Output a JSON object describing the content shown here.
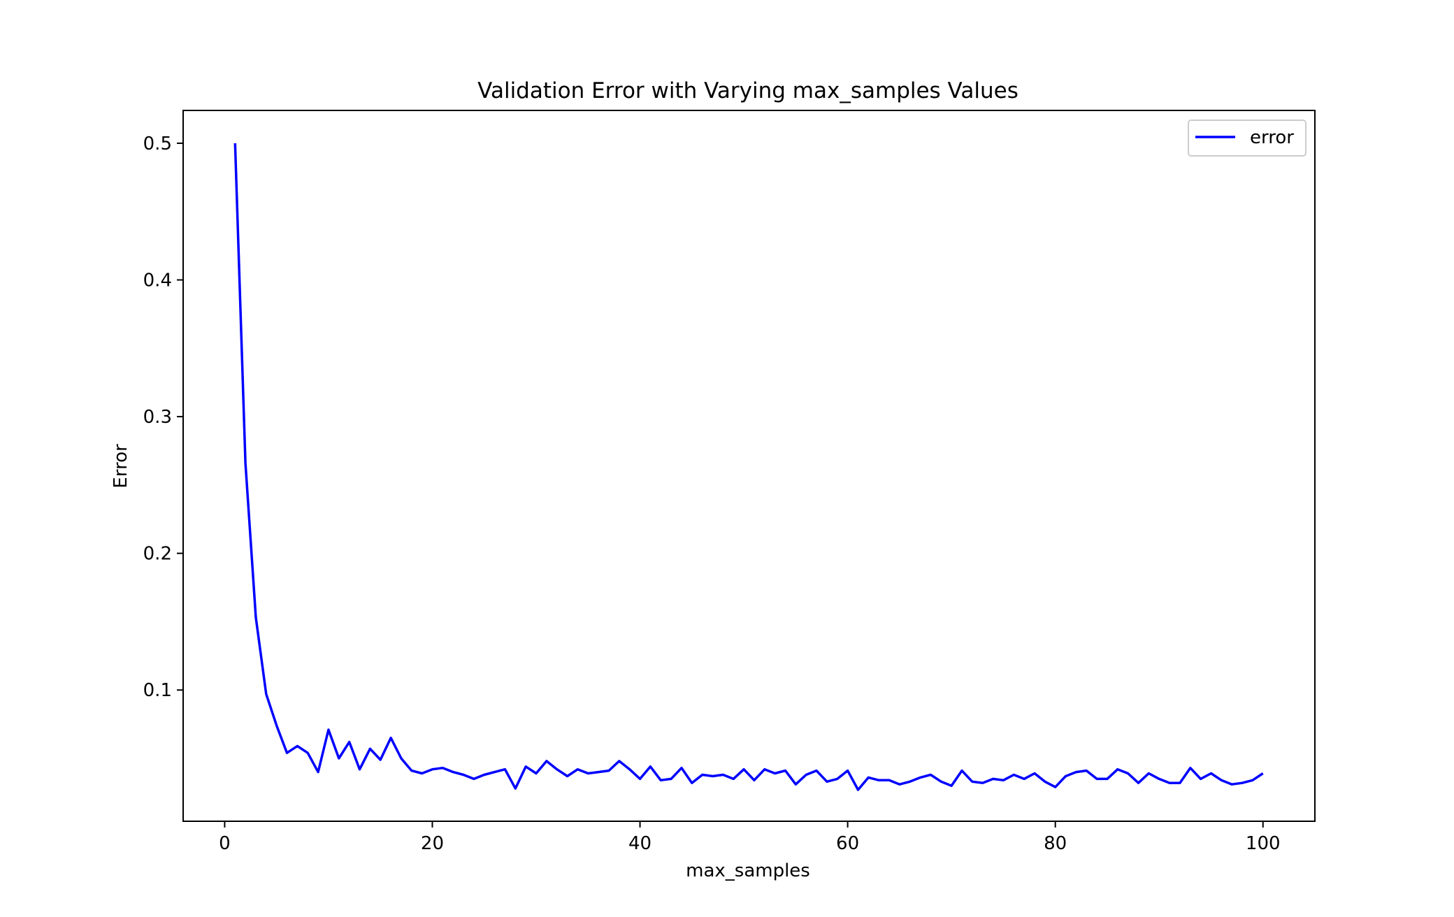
{
  "chart_data": {
    "type": "line",
    "title": "Validation Error with Varying max_samples Values",
    "xlabel": "max_samples",
    "ylabel": "Error",
    "xlim": [
      -4,
      105
    ],
    "ylim": [
      0.004,
      0.524
    ],
    "xticks": [
      0,
      20,
      40,
      60,
      80,
      100
    ],
    "yticks": [
      0.1,
      0.2,
      0.3,
      0.4,
      0.5
    ],
    "xtick_labels": [
      "0",
      "20",
      "40",
      "60",
      "80",
      "100"
    ],
    "ytick_labels": [
      "0.1",
      "0.2",
      "0.3",
      "0.4",
      "0.5"
    ],
    "grid": false,
    "legend": {
      "position": "top-right",
      "entries": [
        "error"
      ]
    },
    "series": [
      {
        "name": "error",
        "color": "#0000ff",
        "x": [
          1,
          2,
          3,
          4,
          5,
          6,
          7,
          8,
          9,
          10,
          11,
          12,
          13,
          14,
          15,
          16,
          17,
          18,
          19,
          20,
          21,
          22,
          23,
          24,
          25,
          26,
          27,
          28,
          29,
          30,
          31,
          32,
          33,
          34,
          35,
          36,
          37,
          38,
          39,
          40,
          41,
          42,
          43,
          44,
          45,
          46,
          47,
          48,
          49,
          50,
          51,
          52,
          53,
          54,
          55,
          56,
          57,
          58,
          59,
          60,
          61,
          62,
          63,
          64,
          65,
          66,
          67,
          68,
          69,
          70,
          71,
          72,
          73,
          74,
          75,
          76,
          77,
          78,
          79,
          80,
          81,
          82,
          83,
          84,
          85,
          86,
          87,
          88,
          89,
          90,
          91,
          92,
          93,
          94,
          95,
          96,
          97,
          98,
          99,
          100
        ],
        "values": [
          0.5,
          0.266,
          0.153,
          0.097,
          0.074,
          0.054,
          0.059,
          0.054,
          0.04,
          0.071,
          0.05,
          0.062,
          0.042,
          0.057,
          0.049,
          0.065,
          0.05,
          0.041,
          0.039,
          0.042,
          0.043,
          0.04,
          0.038,
          0.035,
          0.038,
          0.04,
          0.042,
          0.028,
          0.044,
          0.039,
          0.048,
          0.042,
          0.037,
          0.042,
          0.039,
          0.04,
          0.041,
          0.048,
          0.042,
          0.035,
          0.044,
          0.034,
          0.035,
          0.043,
          0.032,
          0.038,
          0.037,
          0.038,
          0.035,
          0.042,
          0.034,
          0.042,
          0.039,
          0.041,
          0.031,
          0.038,
          0.041,
          0.033,
          0.035,
          0.041,
          0.027,
          0.036,
          0.034,
          0.034,
          0.031,
          0.033,
          0.036,
          0.038,
          0.033,
          0.03,
          0.041,
          0.033,
          0.032,
          0.035,
          0.034,
          0.038,
          0.035,
          0.039,
          0.033,
          0.029,
          0.037,
          0.04,
          0.041,
          0.035,
          0.035,
          0.042,
          0.039,
          0.032,
          0.039,
          0.035,
          0.032,
          0.032,
          0.043,
          0.035,
          0.039,
          0.034,
          0.031,
          0.032,
          0.034,
          0.039
        ]
      }
    ]
  }
}
